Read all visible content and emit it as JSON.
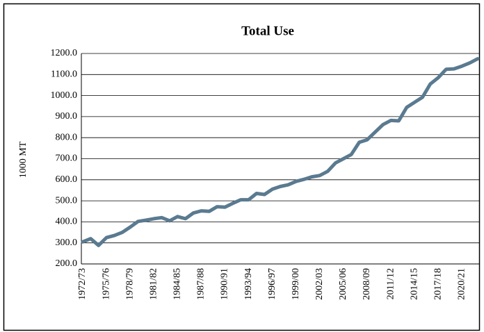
{
  "chart_data": {
    "type": "line",
    "title": "Total Use",
    "y_label": "1000 MT",
    "categories": [
      "1972/73",
      null,
      null,
      "1975/76",
      null,
      null,
      "1978/79",
      null,
      null,
      "1981/82",
      null,
      null,
      "1984/85",
      null,
      null,
      "1987/88",
      null,
      null,
      "1990/91",
      null,
      null,
      "1993/94",
      null,
      null,
      "1996/97",
      null,
      null,
      "1999/00",
      null,
      null,
      "2002/03",
      null,
      null,
      "2005/06",
      null,
      null,
      "2008/09",
      null,
      null,
      "2011/12",
      null,
      null,
      "2014/15",
      null,
      null,
      "2017/18",
      null,
      null,
      "2020/21",
      null,
      null
    ],
    "series": [
      {
        "name": "Total Use",
        "color": "#5a7a90",
        "values": [
          305,
          320,
          288,
          325,
          335,
          350,
          375,
          402,
          408,
          415,
          420,
          405,
          425,
          415,
          442,
          452,
          450,
          472,
          470,
          488,
          505,
          505,
          535,
          530,
          555,
          568,
          576,
          592,
          602,
          614,
          620,
          640,
          680,
          700,
          720,
          778,
          790,
          826,
          862,
          882,
          880,
          944,
          968,
          992,
          1055,
          1085,
          1125,
          1127,
          1140,
          1155,
          1175
        ]
      }
    ],
    "ylim": [
      200,
      1200
    ],
    "yticks": [
      {
        "value": 200,
        "label": "200.0"
      },
      {
        "value": 300,
        "label": "300.0"
      },
      {
        "value": 400,
        "label": "400.0"
      },
      {
        "value": 500,
        "label": "500.0"
      },
      {
        "value": 600,
        "label": "600.0"
      },
      {
        "value": 700,
        "label": "700.0"
      },
      {
        "value": 800,
        "label": "800.0"
      },
      {
        "value": 900,
        "label": "900.0"
      },
      {
        "value": 1000,
        "label": "1000.0"
      },
      {
        "value": 1100,
        "label": "1100.0"
      },
      {
        "value": 1200,
        "label": "1200.0"
      }
    ],
    "grid": true
  }
}
